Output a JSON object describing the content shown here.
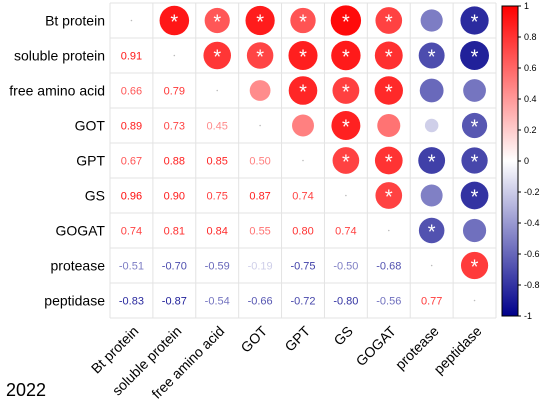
{
  "chart_data": {
    "type": "heatmap",
    "variables": [
      "Bt protein",
      "soluble protein",
      "free amino acid",
      "GOT",
      "GPT",
      "GS",
      "GOGAT",
      "protease",
      "peptidase"
    ],
    "correlations": [
      [
        1,
        0.91,
        0.66,
        0.89,
        0.67,
        0.96,
        0.74,
        -0.51,
        -0.83
      ],
      [
        0.91,
        1,
        0.79,
        0.73,
        0.88,
        0.9,
        0.81,
        -0.7,
        -0.87
      ],
      [
        0.66,
        0.79,
        1,
        0.45,
        0.85,
        0.75,
        0.84,
        -0.59,
        -0.54
      ],
      [
        0.89,
        0.73,
        0.45,
        1,
        0.5,
        0.87,
        0.55,
        -0.19,
        -0.66
      ],
      [
        0.67,
        0.88,
        0.85,
        0.5,
        1,
        0.74,
        0.8,
        -0.75,
        -0.72
      ],
      [
        0.96,
        0.9,
        0.75,
        0.87,
        0.74,
        1,
        0.74,
        -0.5,
        -0.8
      ],
      [
        0.74,
        0.81,
        0.84,
        0.55,
        0.8,
        0.74,
        1,
        -0.68,
        -0.56
      ],
      [
        -0.51,
        -0.7,
        -0.59,
        -0.19,
        -0.75,
        -0.5,
        -0.68,
        1,
        0.77
      ],
      [
        -0.83,
        -0.87,
        -0.54,
        -0.66,
        -0.72,
        -0.8,
        -0.56,
        0.77,
        1
      ]
    ],
    "significant_marker": "*",
    "significant_pairs": [
      [
        0,
        1
      ],
      [
        0,
        2
      ],
      [
        0,
        3
      ],
      [
        0,
        4
      ],
      [
        0,
        5
      ],
      [
        0,
        6
      ],
      [
        0,
        8
      ],
      [
        1,
        2
      ],
      [
        1,
        3
      ],
      [
        1,
        4
      ],
      [
        1,
        5
      ],
      [
        1,
        6
      ],
      [
        1,
        7
      ],
      [
        1,
        8
      ],
      [
        2,
        4
      ],
      [
        2,
        5
      ],
      [
        2,
        6
      ],
      [
        3,
        5
      ],
      [
        3,
        8
      ],
      [
        4,
        5
      ],
      [
        4,
        6
      ],
      [
        4,
        7
      ],
      [
        4,
        8
      ],
      [
        5,
        6
      ],
      [
        5,
        8
      ],
      [
        6,
        7
      ],
      [
        7,
        8
      ]
    ],
    "layout": "upper triangle circles (size and color by r), lower triangle numeric values, diagonal blank",
    "colorbar": {
      "min": -1,
      "max": 1,
      "ticks": [
        "1",
        "0.8",
        "0.6",
        "0.4",
        "0.2",
        "0",
        "-0.2",
        "-0.4",
        "-0.6",
        "-0.8",
        "-1"
      ],
      "colors": {
        "positive": "#ff0000",
        "zero": "#ffffff",
        "negative": "#00008b"
      }
    },
    "annotation": "2022"
  }
}
